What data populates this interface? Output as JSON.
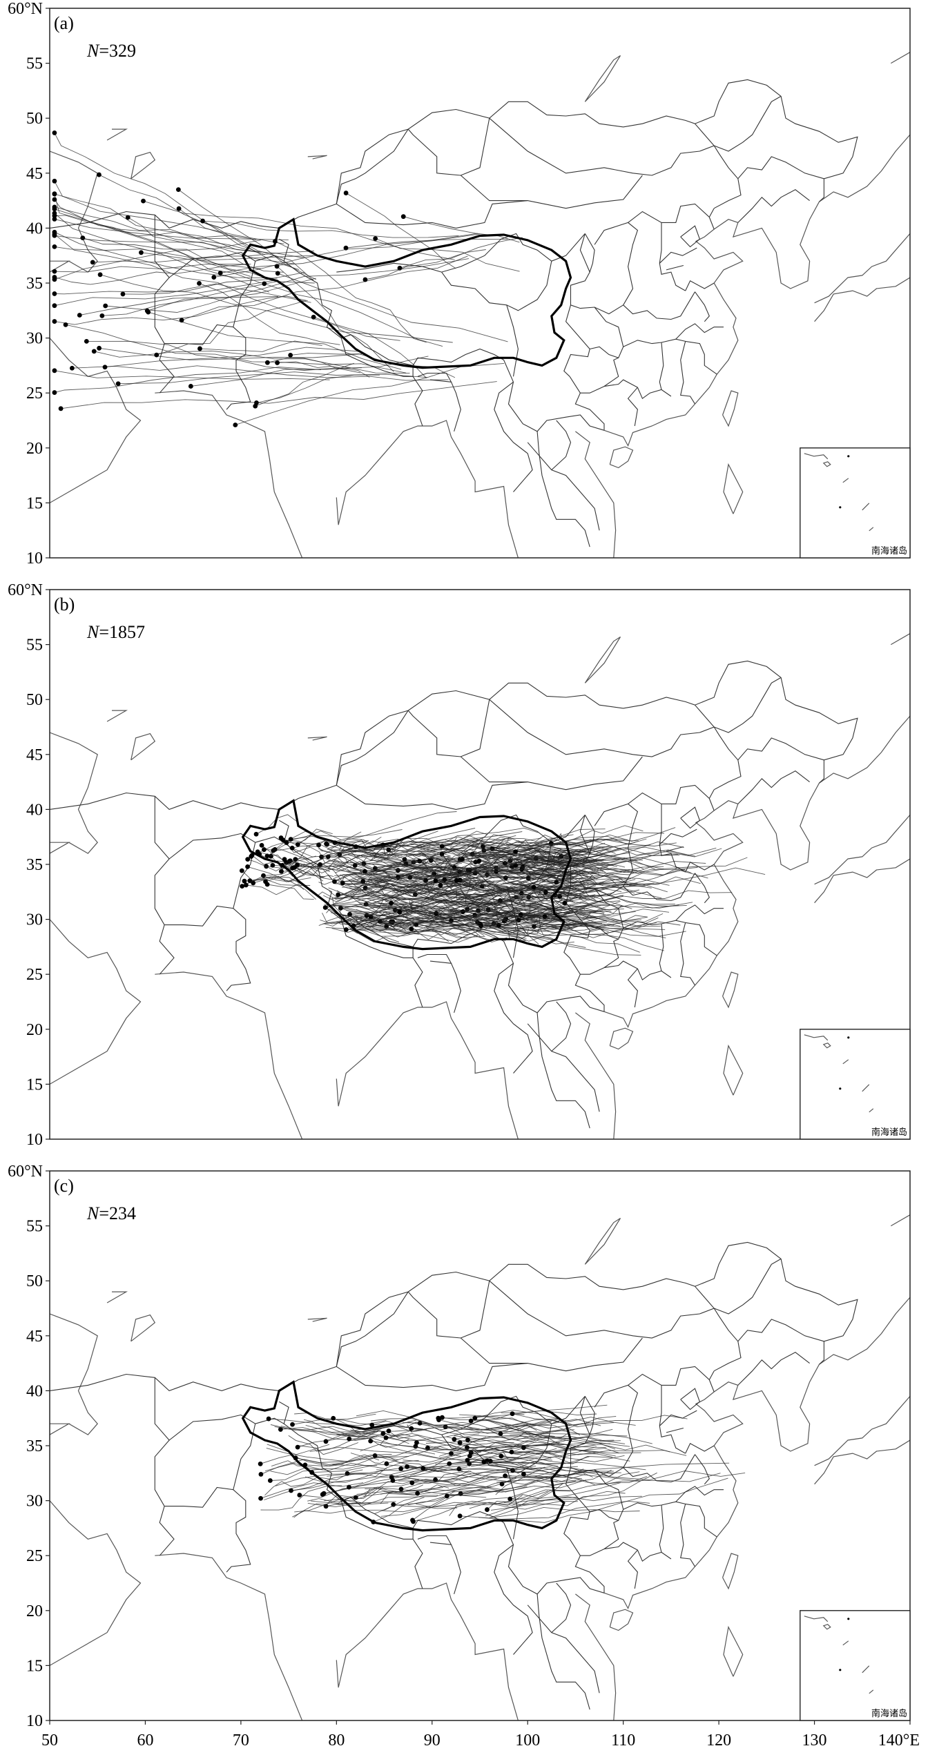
{
  "figure": {
    "lon_range": [
      50,
      140
    ],
    "lat_range": [
      10,
      60
    ],
    "x_ticks": [
      "50",
      "60",
      "70",
      "80",
      "90",
      "100",
      "110",
      "120",
      "130",
      "140°E"
    ],
    "y_ticks": [
      "10",
      "15",
      "20",
      "25",
      "30",
      "35",
      "40",
      "45",
      "50",
      "55",
      "60°N"
    ],
    "inset_label": "南海诸岛"
  },
  "panels": [
    {
      "id": "a",
      "label": "(a)",
      "n_prefix": "N",
      "n_value": "=329",
      "style": "plateau-edge trajectories, mostly from west/northwest"
    },
    {
      "id": "b",
      "label": "(b)",
      "n_prefix": "N",
      "n_value": "=1857",
      "style": "dense trajectories over plateau interior"
    },
    {
      "id": "c",
      "label": "(c)",
      "n_prefix": "N",
      "n_value": "=234",
      "style": "trajectories over central plateau toward east"
    }
  ],
  "colors": {
    "frame": "#222222",
    "coastline": "#555555",
    "boundary": "#333333",
    "plateau_outline": "#000000",
    "trajectory": "#222222"
  }
}
